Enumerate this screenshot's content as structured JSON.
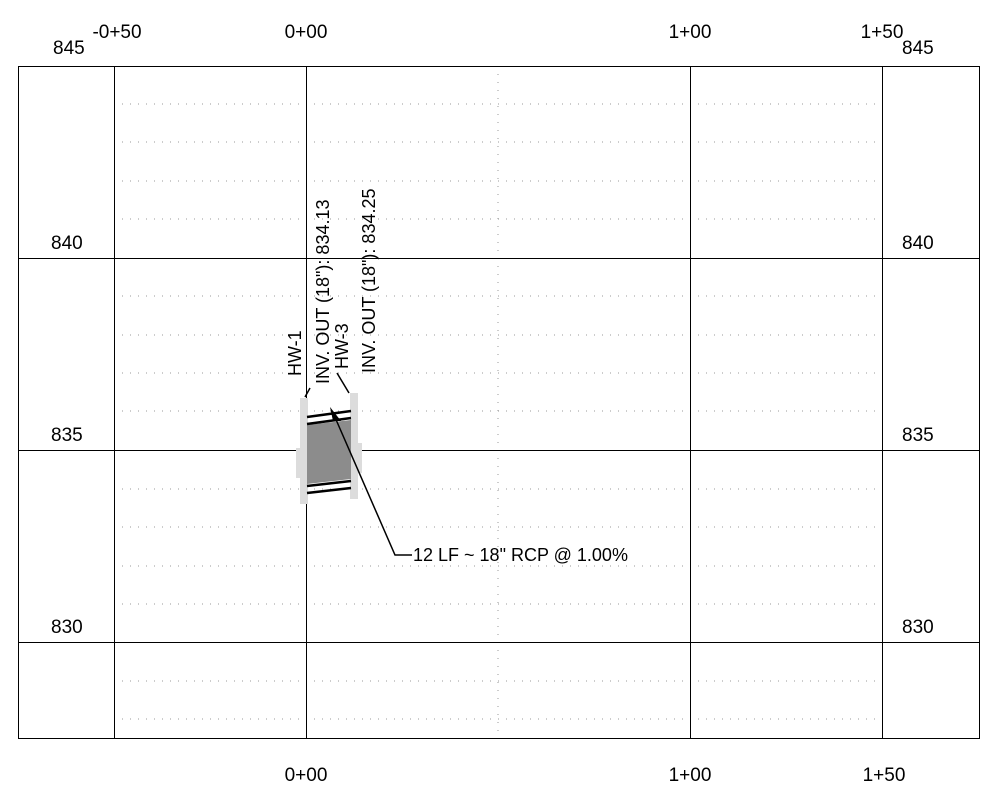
{
  "profile": {
    "station_labels_top": [
      "-0+50",
      "0+00",
      "1+00",
      "1+50"
    ],
    "station_labels_bottom": [
      "0+00",
      "1+00",
      "1+50"
    ],
    "elevation_labels": [
      "845",
      "840",
      "835",
      "830"
    ]
  },
  "structures": [
    {
      "name": "HW-1",
      "invert_note": "INV. OUT (18\"): 834.13"
    },
    {
      "name": "HW-3",
      "invert_note": "INV. OUT (18\"): 834.25"
    }
  ],
  "pipe": {
    "callout": "12 LF ~ 18\" RCP @ 1.00%"
  },
  "colors": {
    "line": "#000000",
    "grid_dots": "#9a9a9a",
    "pipe_fill": "#8c8c8c",
    "structure_fill": "#dcdcdc"
  }
}
